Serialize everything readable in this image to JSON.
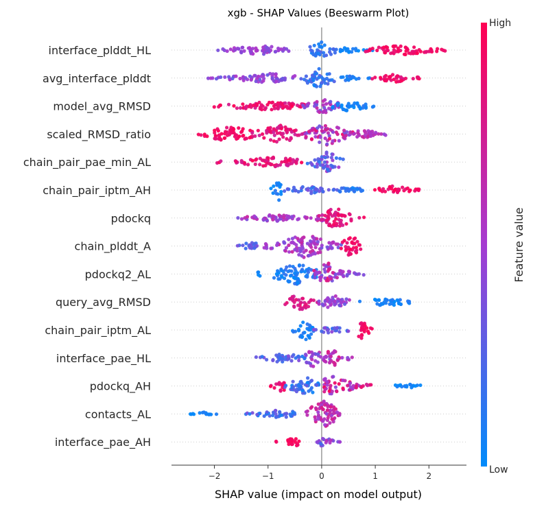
{
  "chart_data": {
    "type": "scatter",
    "subtype": "shap-beeswarm",
    "title": "xgb - SHAP Values (Beeswarm Plot)",
    "xlabel": "SHAP value (impact on model output)",
    "xlim": [
      -2.8,
      2.7
    ],
    "xticks": [
      -2,
      -1,
      0,
      1,
      2
    ],
    "zero_line": true,
    "colorbar": {
      "label": "Feature value",
      "high_label": "High",
      "low_label": "Low",
      "low_color": "#008bfb",
      "mid_color": "#a53bd1",
      "high_color": "#ff0052"
    },
    "features": [
      {
        "name": "interface_plddt_HL",
        "clusters": [
          {
            "min": -2.1,
            "max": -0.6,
            "center": -1.2,
            "width": 7,
            "color": [
              0.35,
              0.55
            ]
          },
          {
            "min": -0.25,
            "max": 0.35,
            "center": 0.0,
            "width": 12,
            "color": [
              0.05,
              0.25
            ]
          },
          {
            "min": 0.35,
            "max": 0.95,
            "center": 0.5,
            "width": 4,
            "color": [
              0.0,
              0.1
            ]
          },
          {
            "min": 0.8,
            "max": 2.4,
            "center": 1.5,
            "width": 7,
            "color": [
              0.85,
              1.0
            ]
          }
        ]
      },
      {
        "name": "avg_interface_plddt",
        "clusters": [
          {
            "min": -2.2,
            "max": -0.5,
            "center": -1.0,
            "width": 7,
            "color": [
              0.3,
              0.55
            ]
          },
          {
            "min": -0.4,
            "max": 0.3,
            "center": -0.05,
            "width": 14,
            "color": [
              0.05,
              0.3
            ]
          },
          {
            "min": 0.3,
            "max": 0.9,
            "center": 0.5,
            "width": 4,
            "color": [
              0.05,
              0.15
            ]
          },
          {
            "min": 0.9,
            "max": 1.85,
            "center": 1.4,
            "width": 6,
            "color": [
              0.8,
              1.0
            ]
          }
        ]
      },
      {
        "name": "model_avg_RMSD",
        "clusters": [
          {
            "min": -2.05,
            "max": -0.3,
            "center": -1.0,
            "width": 7,
            "color": [
              0.75,
              1.0
            ]
          },
          {
            "min": -0.35,
            "max": 0.35,
            "center": 0.05,
            "width": 12,
            "color": [
              0.3,
              0.65
            ]
          },
          {
            "min": 0.2,
            "max": 1.1,
            "center": 0.5,
            "width": 7,
            "color": [
              0.0,
              0.12
            ]
          }
        ]
      },
      {
        "name": "scaled_RMSD_ratio",
        "clusters": [
          {
            "min": -2.3,
            "max": -1.2,
            "center": -1.7,
            "width": 12,
            "color": [
              0.85,
              1.0
            ]
          },
          {
            "min": -1.3,
            "max": -0.3,
            "center": -0.8,
            "width": 14,
            "color": [
              0.7,
              0.95
            ]
          },
          {
            "min": -0.35,
            "max": 0.6,
            "center": 0.1,
            "width": 17,
            "color": [
              0.3,
              0.9
            ]
          },
          {
            "min": 0.5,
            "max": 1.35,
            "center": 0.8,
            "width": 6,
            "color": [
              0.45,
              0.7
            ]
          }
        ]
      },
      {
        "name": "chain_pair_pae_min_AL",
        "clusters": [
          {
            "min": -1.95,
            "max": -0.3,
            "center": -0.9,
            "width": 7,
            "color": [
              0.7,
              1.0
            ]
          },
          {
            "min": -0.3,
            "max": 0.4,
            "center": 0.1,
            "width": 15,
            "color": [
              0.1,
              0.55
            ]
          }
        ]
      },
      {
        "name": "chain_pair_iptm_AH",
        "clusters": [
          {
            "min": -0.95,
            "max": -0.7,
            "center": -0.8,
            "width": 16,
            "color": [
              0.0,
              0.15
            ]
          },
          {
            "min": -0.7,
            "max": 0.3,
            "center": -0.3,
            "width": 6,
            "color": [
              0.1,
              0.4
            ]
          },
          {
            "min": 0.2,
            "max": 1.0,
            "center": 0.5,
            "width": 4,
            "color": [
              0.05,
              0.2
            ]
          },
          {
            "min": 0.9,
            "max": 1.85,
            "center": 1.3,
            "width": 6,
            "color": [
              0.85,
              1.0
            ]
          }
        ]
      },
      {
        "name": "pdockq",
        "clusters": [
          {
            "min": -1.7,
            "max": -0.3,
            "center": -0.9,
            "width": 5,
            "color": [
              0.35,
              0.7
            ]
          },
          {
            "min": -0.3,
            "max": 0.15,
            "center": 0.0,
            "width": 6,
            "color": [
              0.5,
              0.8
            ]
          },
          {
            "min": 0.05,
            "max": 0.8,
            "center": 0.25,
            "width": 16,
            "color": [
              0.75,
              0.95
            ]
          }
        ]
      },
      {
        "name": "chain_plddt_A",
        "clusters": [
          {
            "min": -1.6,
            "max": -1.1,
            "center": -1.3,
            "width": 6,
            "color": [
              0.15,
              0.4
            ]
          },
          {
            "min": -1.1,
            "max": 0.0,
            "center": -0.3,
            "width": 18,
            "color": [
              0.35,
              0.7
            ]
          },
          {
            "min": 0.0,
            "max": 0.4,
            "center": 0.2,
            "width": 8,
            "color": [
              0.3,
              0.6
            ]
          },
          {
            "min": 0.35,
            "max": 0.8,
            "center": 0.55,
            "width": 17,
            "color": [
              0.85,
              1.0
            ]
          }
        ]
      },
      {
        "name": "pdockq2_AL",
        "clusters": [
          {
            "min": -1.2,
            "max": -0.1,
            "center": -0.5,
            "width": 16,
            "color": [
              0.0,
              0.2
            ]
          },
          {
            "min": -0.15,
            "max": 0.4,
            "center": 0.1,
            "width": 17,
            "color": [
              0.3,
              0.95
            ]
          },
          {
            "min": 0.3,
            "max": 0.8,
            "center": 0.4,
            "width": 6,
            "color": [
              0.35,
              0.6
            ]
          }
        ]
      },
      {
        "name": "query_avg_RMSD",
        "clusters": [
          {
            "min": -0.7,
            "max": -0.05,
            "center": -0.4,
            "width": 12,
            "color": [
              0.7,
              0.9
            ]
          },
          {
            "min": -0.1,
            "max": 0.7,
            "center": 0.2,
            "width": 10,
            "color": [
              0.3,
              0.6
            ]
          },
          {
            "min": 0.6,
            "max": 1.65,
            "center": 1.2,
            "width": 6,
            "color": [
              0.0,
              0.12
            ]
          }
        ]
      },
      {
        "name": "chain_pair_iptm_AL",
        "clusters": [
          {
            "min": -0.55,
            "max": -0.15,
            "center": -0.3,
            "width": 17,
            "color": [
              0.0,
              0.15
            ]
          },
          {
            "min": -0.15,
            "max": 0.6,
            "center": 0.2,
            "width": 5,
            "color": [
              0.15,
              0.45
            ]
          },
          {
            "min": 0.6,
            "max": 0.95,
            "center": 0.75,
            "width": 15,
            "color": [
              0.85,
              1.0
            ]
          }
        ]
      },
      {
        "name": "interface_pae_HL",
        "clusters": [
          {
            "min": -1.25,
            "max": -0.3,
            "center": -0.7,
            "width": 7,
            "color": [
              0.1,
              0.4
            ]
          },
          {
            "min": -0.3,
            "max": 0.05,
            "center": -0.15,
            "width": 17,
            "color": [
              0.3,
              0.65
            ]
          },
          {
            "min": 0.05,
            "max": 0.6,
            "center": 0.2,
            "width": 12,
            "color": [
              0.4,
              0.85
            ]
          }
        ]
      },
      {
        "name": "pdockq_AH",
        "clusters": [
          {
            "min": -1.05,
            "max": -0.7,
            "center": -0.75,
            "width": 8,
            "color": [
              0.8,
              1.0
            ]
          },
          {
            "min": -0.7,
            "max": 0.05,
            "center": -0.3,
            "width": 14,
            "color": [
              0.0,
              0.3
            ]
          },
          {
            "min": 0.05,
            "max": 0.95,
            "center": 0.2,
            "width": 14,
            "color": [
              0.4,
              1.0
            ]
          },
          {
            "min": 1.3,
            "max": 1.95,
            "center": 1.6,
            "width": 3,
            "color": [
              0.0,
              0.1
            ]
          }
        ]
      },
      {
        "name": "contacts_AL",
        "clusters": [
          {
            "min": -2.5,
            "max": -1.95,
            "center": -2.2,
            "width": 3,
            "color": [
              0.0,
              0.1
            ]
          },
          {
            "min": -1.5,
            "max": -0.4,
            "center": -0.8,
            "width": 6,
            "color": [
              0.05,
              0.4
            ]
          },
          {
            "min": -0.4,
            "max": 0.45,
            "center": 0.05,
            "width": 19,
            "color": [
              0.45,
              0.8
            ]
          }
        ]
      },
      {
        "name": "interface_pae_AH",
        "clusters": [
          {
            "min": -0.85,
            "max": -0.25,
            "center": -0.5,
            "width": 6,
            "color": [
              0.9,
              1.0
            ]
          },
          {
            "min": -0.1,
            "max": 0.05,
            "center": 0.0,
            "width": 8,
            "color": [
              0.2,
              0.5
            ]
          },
          {
            "min": 0.05,
            "max": 0.35,
            "center": 0.15,
            "width": 5,
            "color": [
              0.3,
              0.6
            ]
          }
        ]
      }
    ]
  }
}
